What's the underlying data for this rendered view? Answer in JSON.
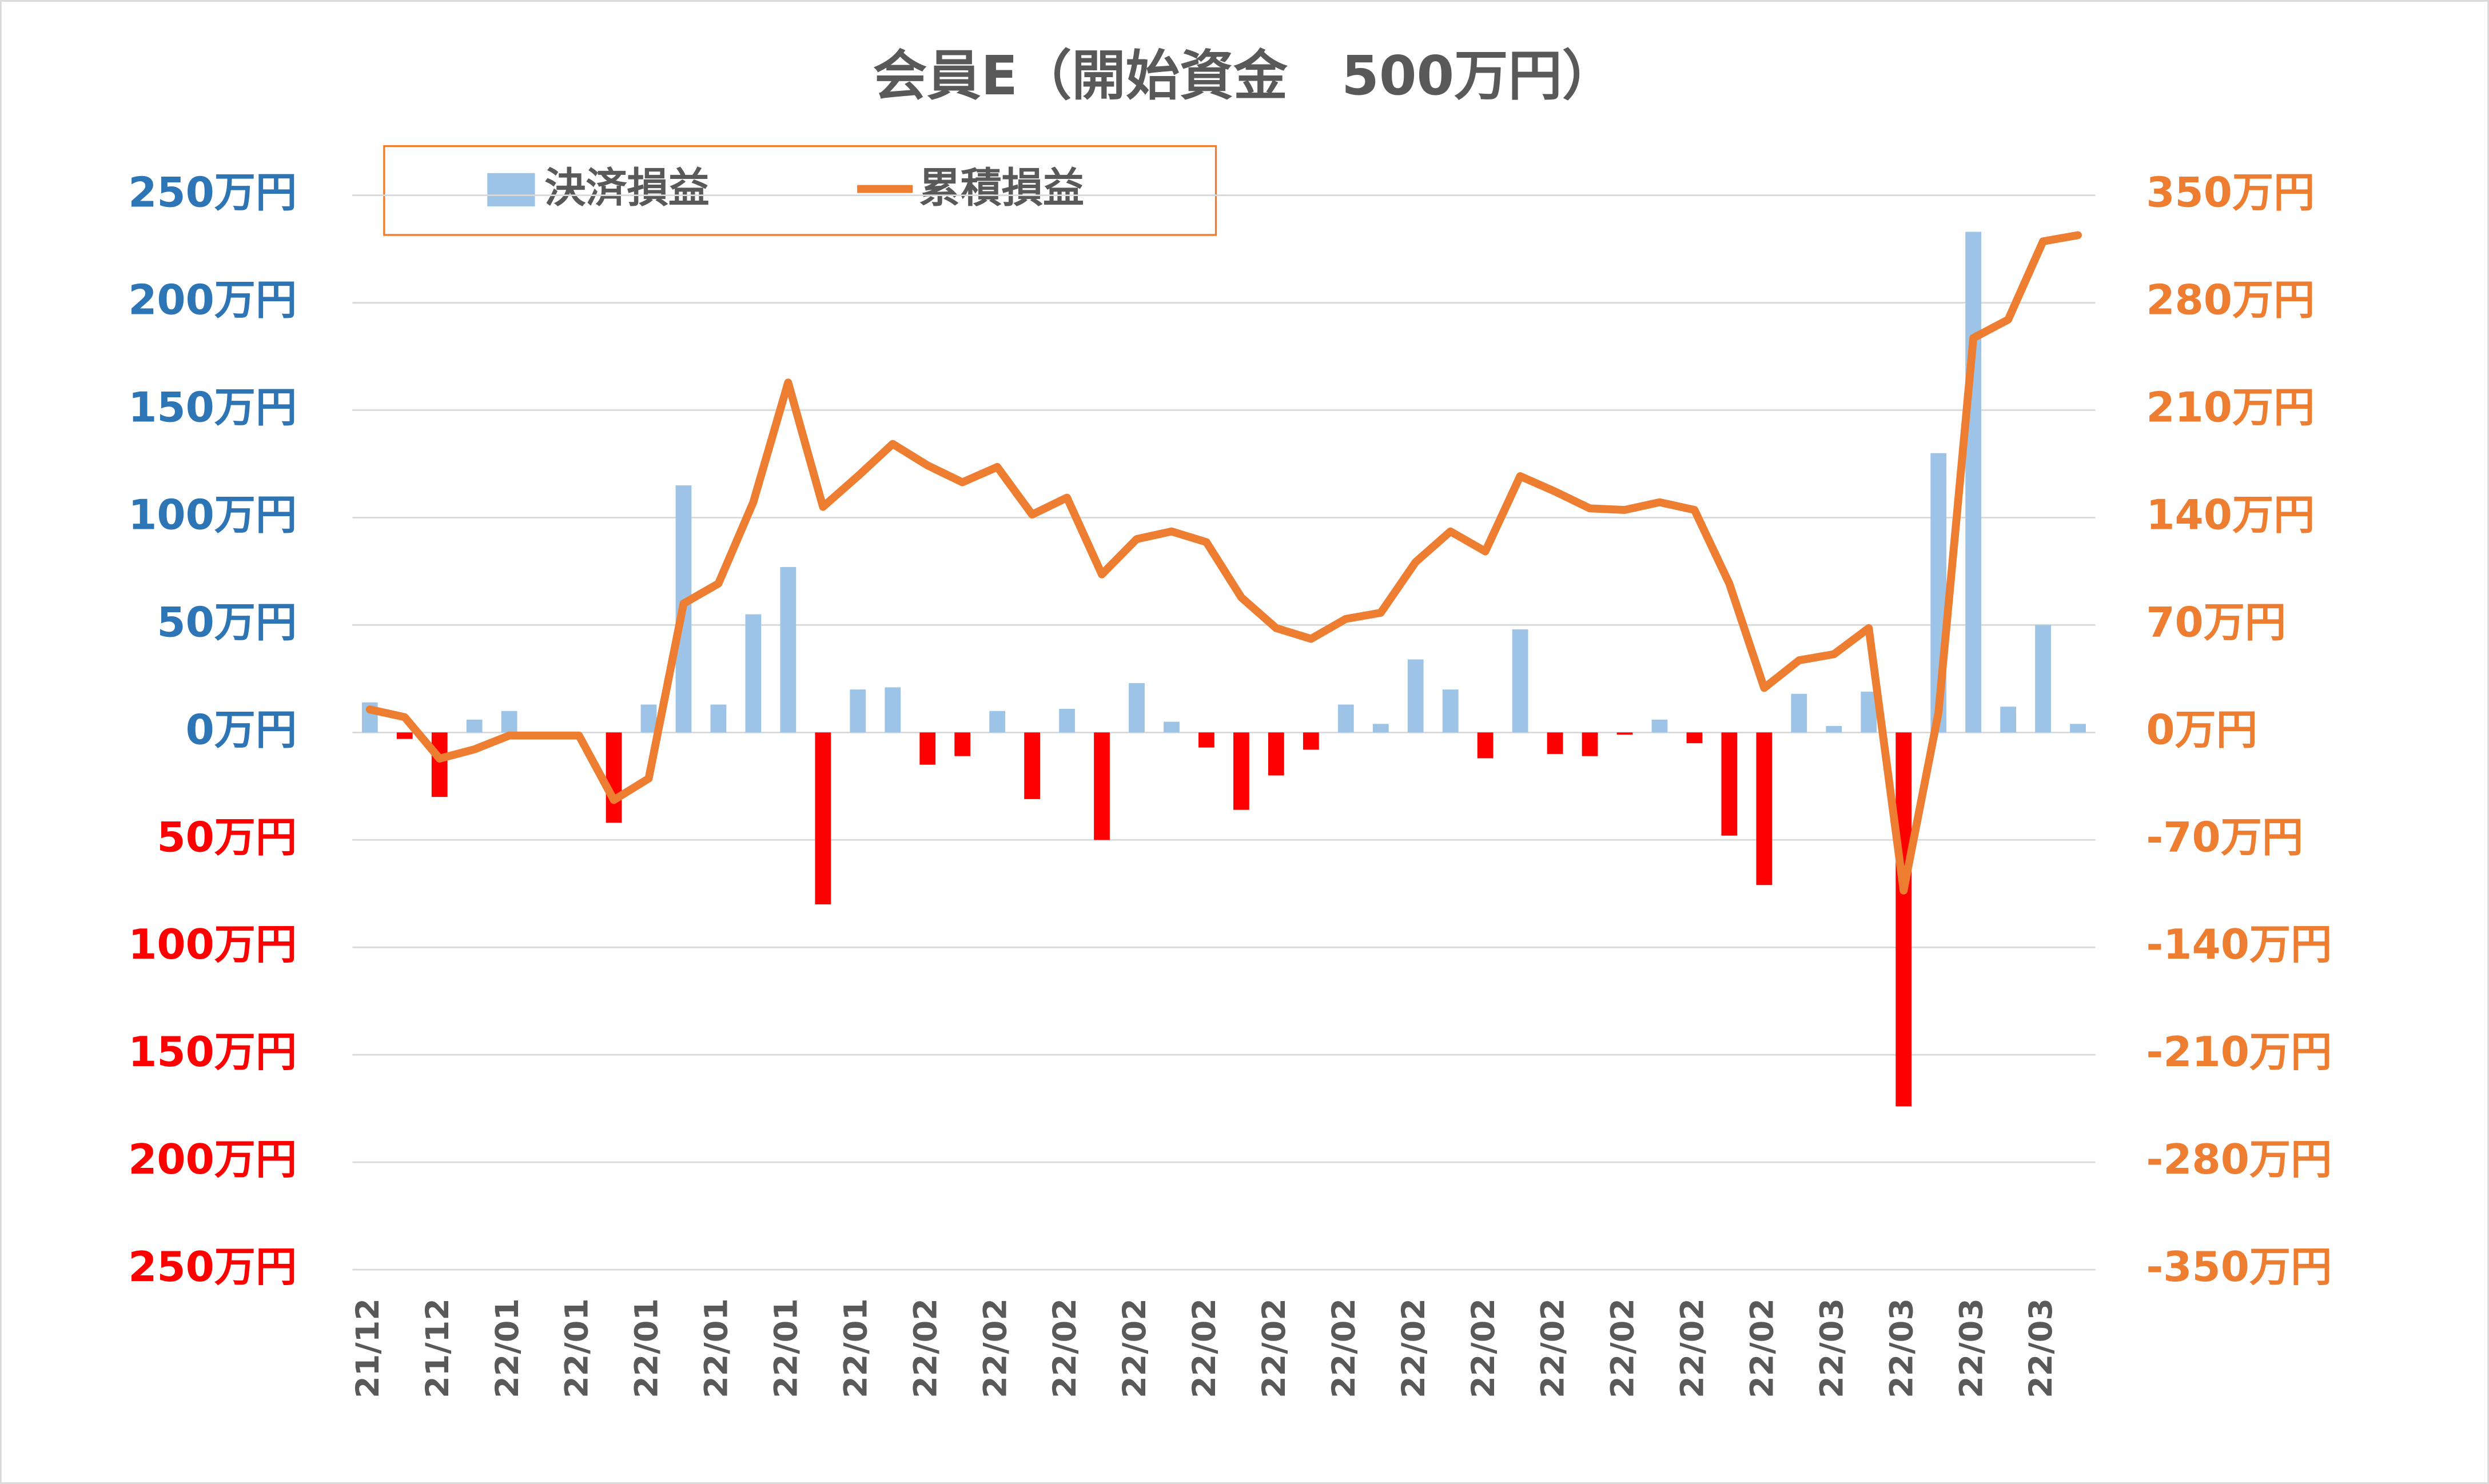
{
  "chart_data": {
    "type": "bar_line",
    "title": "会員E（開始資金　500万円）",
    "categories": [
      "21/12",
      null,
      "21/12",
      null,
      "22/01",
      null,
      "22/01",
      null,
      "22/01",
      null,
      "22/01",
      null,
      "22/01",
      null,
      "22/01",
      null,
      "22/02",
      null,
      "22/02",
      null,
      "22/02",
      null,
      "22/02",
      null,
      "22/02",
      null,
      "22/02",
      null,
      "22/02",
      null,
      "22/02",
      null,
      "22/02",
      null,
      "22/02",
      null,
      "22/02",
      null,
      "22/02",
      null,
      "22/02",
      null,
      "22/03",
      null,
      "22/03",
      null,
      "22/03",
      null,
      "22/03",
      null
    ],
    "series": [
      {
        "name": "決済損益",
        "type": "bar",
        "axis": "y",
        "color": "#9dc3e6",
        "negative_color": "#ff0000",
        "values": [
          14,
          -3,
          -30,
          6,
          10,
          0,
          0,
          -42,
          13,
          115,
          13,
          55,
          77,
          -80,
          20,
          21,
          -15,
          -11,
          10,
          -31,
          11,
          -50,
          23,
          5,
          -7,
          -36,
          -20,
          -8,
          13,
          4,
          34,
          20,
          -12,
          48,
          -10,
          -11,
          -1,
          6,
          -5,
          -48,
          -71,
          18,
          3,
          19,
          -174,
          130,
          233,
          12,
          50,
          4
        ]
      },
      {
        "name": "累積損益",
        "type": "line",
        "axis": "y2",
        "color": "#ed7d31",
        "values": [
          15,
          10,
          -17,
          -11,
          -2,
          -2,
          -2,
          -44,
          -30,
          84,
          97,
          150,
          228,
          147,
          167,
          188,
          174,
          163,
          173,
          142,
          153,
          103,
          126,
          131,
          124,
          88,
          68,
          61,
          74,
          78,
          111,
          131,
          118,
          167,
          157,
          146,
          145,
          150,
          145,
          97,
          29,
          47,
          51,
          68,
          -103,
          13,
          257,
          269,
          320,
          324
        ]
      }
    ],
    "ylim": [
      -250,
      250
    ],
    "yticks": [
      {
        "value": -250,
        "label": "250万円"
      },
      {
        "value": -200,
        "label": "200万円"
      },
      {
        "value": -150,
        "label": "150万円"
      },
      {
        "value": -100,
        "label": "100万円"
      },
      {
        "value": -50,
        "label": "50万円"
      },
      {
        "value": 0,
        "label": "0万円"
      },
      {
        "value": 50,
        "label": "50万円"
      },
      {
        "value": 100,
        "label": "100万円"
      },
      {
        "value": 150,
        "label": "150万円"
      },
      {
        "value": 200,
        "label": "200万円"
      },
      {
        "value": 250,
        "label": "250万円"
      }
    ],
    "ytick_colors": {
      "positive": "#2e75b6",
      "negative": "#ff0000"
    },
    "y2lim": [
      -350,
      350
    ],
    "y2ticks": [
      {
        "value": -350,
        "label": "-350万円"
      },
      {
        "value": -280,
        "label": "-280万円"
      },
      {
        "value": -210,
        "label": "-210万円"
      },
      {
        "value": -140,
        "label": "-140万円"
      },
      {
        "value": -70,
        "label": "-70万円"
      },
      {
        "value": 0,
        "label": "0万円"
      },
      {
        "value": 70,
        "label": "70万円"
      },
      {
        "value": 140,
        "label": "140万円"
      },
      {
        "value": 210,
        "label": "210万円"
      },
      {
        "value": 280,
        "label": "280万円"
      },
      {
        "value": 350,
        "label": "350万円"
      }
    ],
    "y2tick_color": "#ed7d31",
    "grid": true,
    "legend": "top"
  }
}
